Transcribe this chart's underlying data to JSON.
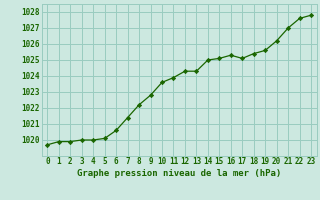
{
  "x": [
    0,
    1,
    2,
    3,
    4,
    5,
    6,
    7,
    8,
    9,
    10,
    11,
    12,
    13,
    14,
    15,
    16,
    17,
    18,
    19,
    20,
    21,
    22,
    23
  ],
  "y": [
    1019.7,
    1019.9,
    1019.9,
    1020.0,
    1020.0,
    1020.1,
    1020.6,
    1021.4,
    1022.2,
    1022.8,
    1023.6,
    1023.9,
    1024.3,
    1024.3,
    1025.0,
    1025.1,
    1025.3,
    1025.1,
    1025.4,
    1025.6,
    1026.2,
    1027.0,
    1027.6,
    1027.8
  ],
  "line_color": "#1a6600",
  "marker_color": "#1a6600",
  "bg_color": "#cce8e0",
  "grid_color": "#99ccc0",
  "axis_color": "#1a6600",
  "xlabel": "Graphe pression niveau de la mer (hPa)",
  "ylim": [
    1019.0,
    1028.5
  ],
  "xlim": [
    -0.5,
    23.5
  ],
  "yticks": [
    1020,
    1021,
    1022,
    1023,
    1024,
    1025,
    1026,
    1027,
    1028
  ],
  "xticks": [
    0,
    1,
    2,
    3,
    4,
    5,
    6,
    7,
    8,
    9,
    10,
    11,
    12,
    13,
    14,
    15,
    16,
    17,
    18,
    19,
    20,
    21,
    22,
    23
  ],
  "tick_fontsize": 5.5,
  "label_fontsize": 6.5
}
